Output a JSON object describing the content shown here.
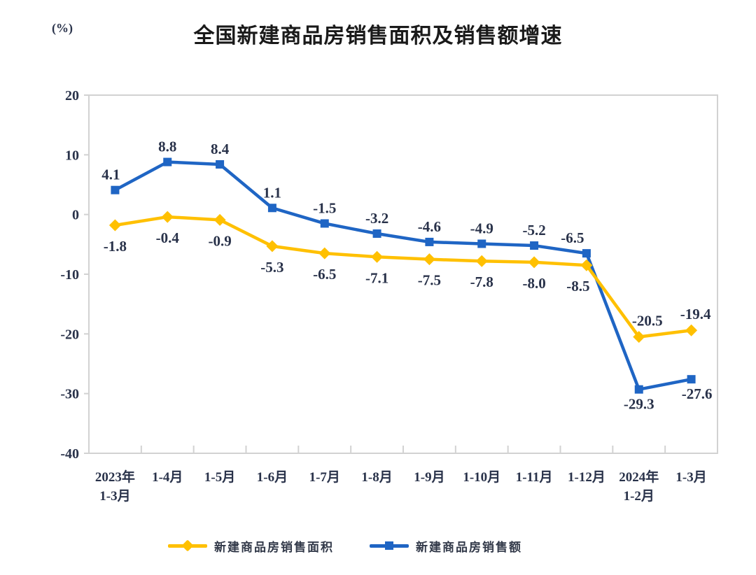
{
  "header": {
    "unit_label": "(%)",
    "title": "全国新建商品房销售面积及销售额增速"
  },
  "chart_data": {
    "type": "line",
    "title": "全国新建商品房销售面积及销售额增速",
    "unit": "(%)",
    "categories": [
      [
        "2023年",
        "1-3月"
      ],
      [
        "1-4月"
      ],
      [
        "1-5月"
      ],
      [
        "1-6月"
      ],
      [
        "1-7月"
      ],
      [
        "1-8月"
      ],
      [
        "1-9月"
      ],
      [
        "1-10月"
      ],
      [
        "1-11月"
      ],
      [
        "1-12月"
      ],
      [
        "2024年",
        "1-2月"
      ],
      [
        "1-3月"
      ]
    ],
    "series": [
      {
        "name": "新建商品房销售面积",
        "color": "#FFC000",
        "marker": "diamond",
        "values": [
          -1.8,
          -0.4,
          -0.9,
          -5.3,
          -6.5,
          -7.1,
          -7.5,
          -7.8,
          -8.0,
          -8.5,
          -20.5,
          -19.4
        ],
        "labels": [
          "-1.8",
          "-0.4",
          "-0.9",
          "-5.3",
          "-6.5",
          "-7.1",
          "-7.5",
          "-7.8",
          "-8.0",
          "-8.5",
          "-20.5",
          "-19.4"
        ],
        "label_side": [
          "below",
          "below",
          "below",
          "below",
          "below",
          "below",
          "below",
          "below",
          "below",
          "below",
          "above",
          "above"
        ]
      },
      {
        "name": "新建商品房销售额",
        "color": "#1F65C4",
        "marker": "square",
        "values": [
          4.1,
          8.8,
          8.4,
          1.1,
          -1.5,
          -3.2,
          -4.6,
          -4.9,
          -5.2,
          -6.5,
          -29.3,
          -27.6
        ],
        "labels": [
          "4.1",
          "8.8",
          "8.4",
          "1.1",
          "-1.5",
          "-3.2",
          "-4.6",
          "-4.9",
          "-5.2",
          "-6.5",
          "-29.3",
          "-27.6"
        ],
        "label_side": [
          "above",
          "above",
          "above",
          "above",
          "above",
          "above",
          "above",
          "above",
          "above",
          "above",
          "below",
          "below"
        ]
      }
    ],
    "ylim": [
      -40,
      20
    ],
    "yticks": [
      20,
      10,
      0,
      -10,
      -20,
      -30,
      -40
    ],
    "grid": false,
    "legend_position": "bottom",
    "axis_color": "#d2d2d2",
    "label_color": "#29324a"
  }
}
